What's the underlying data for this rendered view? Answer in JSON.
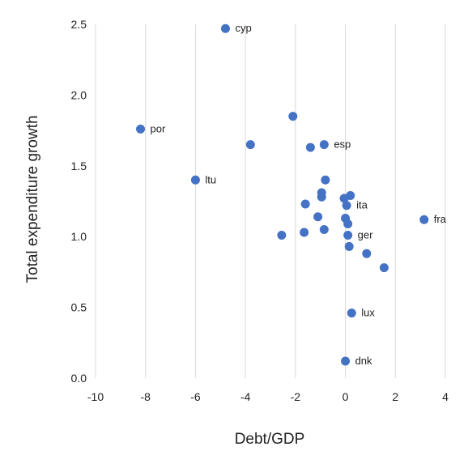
{
  "chart_data": {
    "type": "scatter",
    "title": "",
    "xlabel": "Debt/GDP",
    "ylabel": "Total expenditure growth",
    "xlim": [
      -10,
      4
    ],
    "ylim": [
      0,
      2.5
    ],
    "xticks": [
      "-10",
      "-8",
      "-6",
      "-4",
      "-2",
      "0",
      "2",
      "4"
    ],
    "yticks": [
      "0.0",
      "0.5",
      "1.0",
      "1.5",
      "2.0",
      "2.5"
    ],
    "grid": "vertical",
    "legend": "none",
    "color": "#4472C4",
    "points": [
      {
        "x": -4.8,
        "y": 2.47,
        "label": "cyp"
      },
      {
        "x": -8.2,
        "y": 1.76,
        "label": "por"
      },
      {
        "x": -2.1,
        "y": 1.85,
        "label": ""
      },
      {
        "x": -3.8,
        "y": 1.65,
        "label": ""
      },
      {
        "x": -1.4,
        "y": 1.63,
        "label": ""
      },
      {
        "x": -0.85,
        "y": 1.65,
        "label": "esp"
      },
      {
        "x": -6.0,
        "y": 1.4,
        "label": "ltu"
      },
      {
        "x": -0.8,
        "y": 1.4,
        "label": ""
      },
      {
        "x": -0.95,
        "y": 1.31,
        "label": ""
      },
      {
        "x": -0.95,
        "y": 1.28,
        "label": ""
      },
      {
        "x": -1.6,
        "y": 1.23,
        "label": ""
      },
      {
        "x": 0.2,
        "y": 1.29,
        "label": ""
      },
      {
        "x": -0.05,
        "y": 1.27,
        "label": ""
      },
      {
        "x": 0.05,
        "y": 1.22,
        "label": "ita"
      },
      {
        "x": -1.1,
        "y": 1.14,
        "label": ""
      },
      {
        "x": 0.0,
        "y": 1.13,
        "label": ""
      },
      {
        "x": 0.1,
        "y": 1.09,
        "label": ""
      },
      {
        "x": 3.15,
        "y": 1.12,
        "label": "fra"
      },
      {
        "x": -0.85,
        "y": 1.05,
        "label": ""
      },
      {
        "x": -1.65,
        "y": 1.03,
        "label": ""
      },
      {
        "x": -2.55,
        "y": 1.01,
        "label": ""
      },
      {
        "x": 0.1,
        "y": 1.01,
        "label": "ger"
      },
      {
        "x": 0.15,
        "y": 0.93,
        "label": ""
      },
      {
        "x": 0.85,
        "y": 0.88,
        "label": ""
      },
      {
        "x": 1.55,
        "y": 0.78,
        "label": ""
      },
      {
        "x": 0.25,
        "y": 0.46,
        "label": "lux"
      },
      {
        "x": 0.0,
        "y": 0.12,
        "label": "dnk"
      }
    ]
  }
}
